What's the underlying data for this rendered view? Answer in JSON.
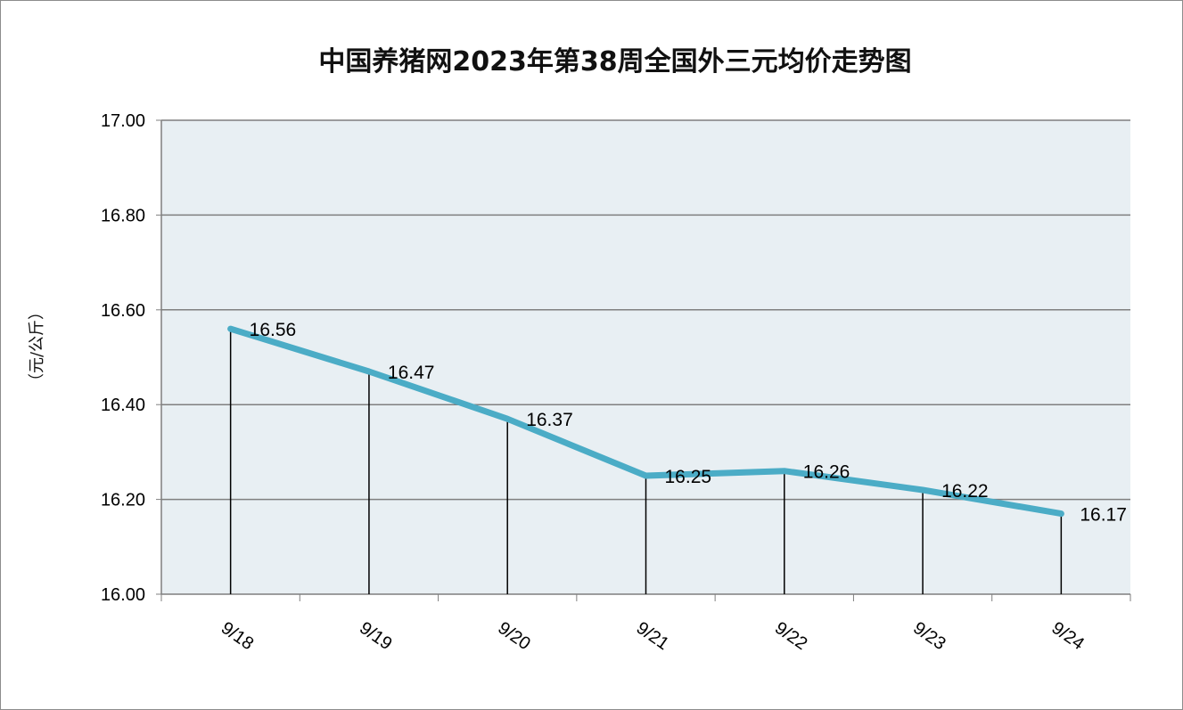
{
  "chart_data": {
    "type": "line",
    "title": "中国养猪网2023年第38周全国外三元均价走势图",
    "ylabel": "（元/公斤）",
    "xlabel": "",
    "categories": [
      "9/18",
      "9/19",
      "9/20",
      "9/21",
      "9/22",
      "9/23",
      "9/24"
    ],
    "series": [
      {
        "values": [
          16.56,
          16.47,
          16.37,
          16.25,
          16.26,
          16.22,
          16.17
        ]
      }
    ],
    "data_labels": [
      "16.56",
      "16.47",
      "16.37",
      "16.25",
      "16.26",
      "16.22",
      "16.17"
    ],
    "ylim": [
      16.0,
      17.0
    ],
    "yticks": [
      "16.00",
      "16.20",
      "16.40",
      "16.60",
      "16.80",
      "17.00"
    ],
    "grid": true,
    "drop_lines": true,
    "legend": "none",
    "colors": {
      "line": "#4bacc6",
      "plot_background": "#e8eff3",
      "gridline": "#7f7f7f",
      "drop_line": "#000000"
    }
  }
}
